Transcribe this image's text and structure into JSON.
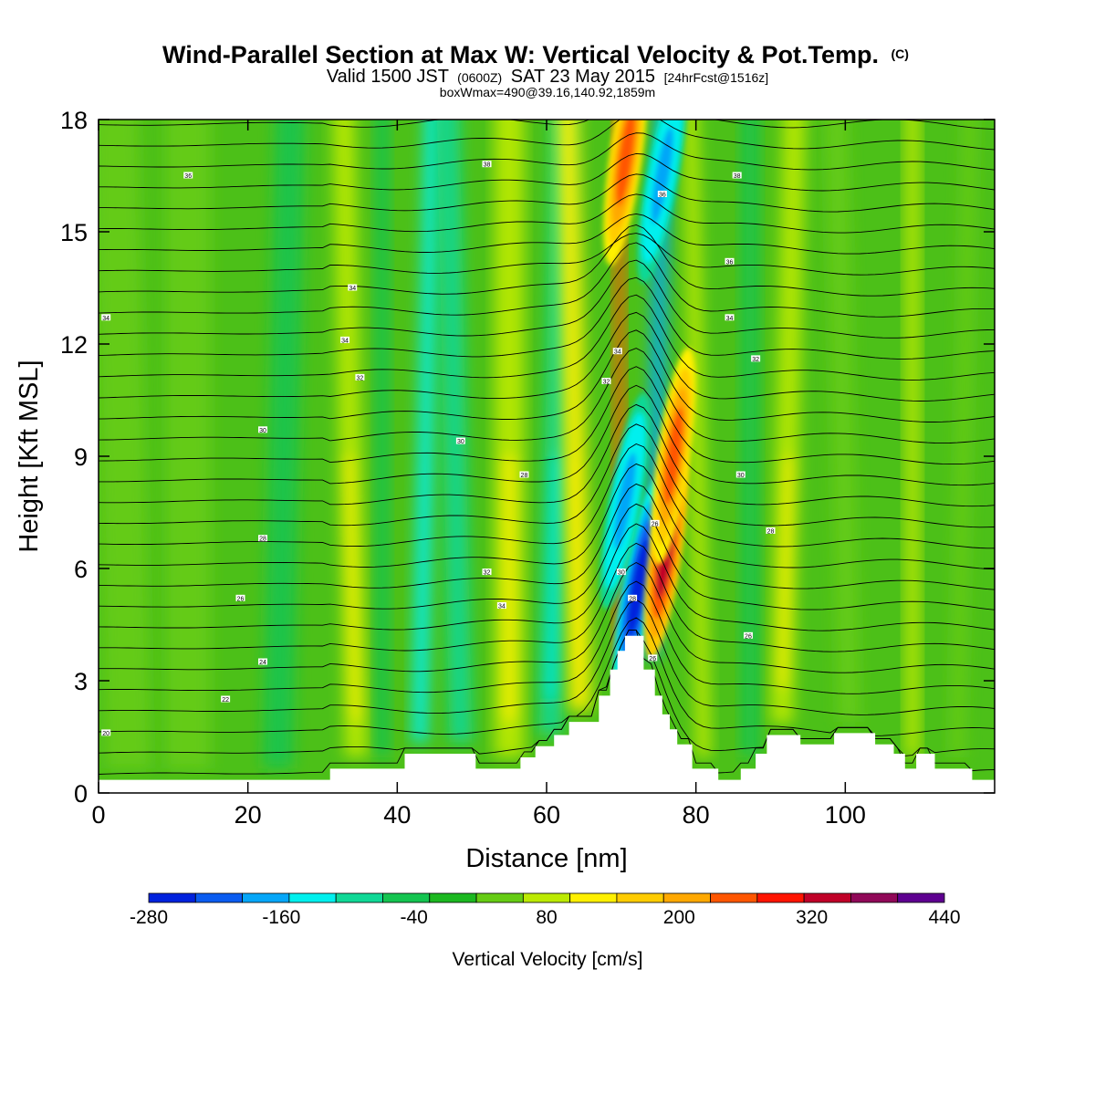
{
  "chart_data": {
    "type": "heatmap",
    "title": "Wind-Parallel Section at Max W: Vertical Velocity & Pot.Temp.",
    "title_mark": "(C)",
    "subtitle": {
      "valid": "Valid 1500 JST",
      "utc": "(0600Z)",
      "date": "SAT 23 May 2015",
      "forecast": "[24hrFcst@1516z]"
    },
    "note": "boxWmax=490@39.16,140.92,1859m",
    "xlabel": "Distance [nm]",
    "ylabel": "Height [Kft MSL]",
    "xlim": [
      0,
      120
    ],
    "ylim": [
      0,
      18
    ],
    "x_ticks": [
      0,
      20,
      40,
      60,
      80,
      100
    ],
    "y_ticks": [
      0,
      3,
      6,
      9,
      12,
      15,
      18
    ],
    "colorbar": {
      "title": "Vertical Velocity [cm/s]",
      "colors": [
        "#0022dd",
        "#0a5cf0",
        "#05a6f8",
        "#00f0ee",
        "#10d896",
        "#14c450",
        "#1cb820",
        "#66cc14",
        "#bcea02",
        "#fff000",
        "#ffcc00",
        "#ffa800",
        "#ff5600",
        "#ff1400",
        "#c00028",
        "#900858",
        "#5e0090"
      ],
      "labels": [
        "-280",
        "-160",
        "-40",
        "80",
        "200",
        "320",
        "440"
      ],
      "label_values": [
        -280,
        -160,
        -40,
        80,
        200,
        320,
        440
      ],
      "range": [
        -280,
        440
      ]
    },
    "terrain_kft": [
      [
        0,
        0.35
      ],
      [
        31,
        0.35
      ],
      [
        31,
        0.65
      ],
      [
        41,
        0.65
      ],
      [
        41,
        1.05
      ],
      [
        50.5,
        1.05
      ],
      [
        50.5,
        0.65
      ],
      [
        56.5,
        0.65
      ],
      [
        56.5,
        0.95
      ],
      [
        58.5,
        0.95
      ],
      [
        58.5,
        1.25
      ],
      [
        61,
        1.25
      ],
      [
        61,
        1.55
      ],
      [
        63,
        1.55
      ],
      [
        63,
        1.9
      ],
      [
        67,
        1.9
      ],
      [
        67,
        2.6
      ],
      [
        68.5,
        2.6
      ],
      [
        68.5,
        3.3
      ],
      [
        69.5,
        3.3
      ],
      [
        69.5,
        3.8
      ],
      [
        70.5,
        3.8
      ],
      [
        70.5,
        4.2
      ],
      [
        73,
        4.2
      ],
      [
        73,
        3.3
      ],
      [
        74.5,
        3.3
      ],
      [
        74.5,
        2.6
      ],
      [
        75.5,
        2.6
      ],
      [
        75.5,
        2.1
      ],
      [
        76.5,
        2.1
      ],
      [
        76.5,
        1.7
      ],
      [
        77.5,
        1.7
      ],
      [
        77.5,
        1.3
      ],
      [
        79.5,
        1.3
      ],
      [
        79.5,
        0.65
      ],
      [
        83,
        0.65
      ],
      [
        83,
        0.35
      ],
      [
        86,
        0.35
      ],
      [
        86,
        0.65
      ],
      [
        88,
        0.65
      ],
      [
        88,
        1.05
      ],
      [
        89.5,
        1.05
      ],
      [
        89.5,
        1.55
      ],
      [
        94,
        1.55
      ],
      [
        94,
        1.3
      ],
      [
        98.5,
        1.3
      ],
      [
        98.5,
        1.6
      ],
      [
        104,
        1.6
      ],
      [
        104,
        1.3
      ],
      [
        106.5,
        1.3
      ],
      [
        106.5,
        1.05
      ],
      [
        108,
        1.05
      ],
      [
        108,
        0.65
      ],
      [
        109.5,
        0.65
      ],
      [
        109.5,
        1.05
      ],
      [
        112,
        1.05
      ],
      [
        112,
        0.65
      ],
      [
        117,
        0.65
      ],
      [
        117,
        0.35
      ],
      [
        120,
        0.35
      ]
    ],
    "w_bands": [
      {
        "x": 1,
        "w": 6,
        "value": 40
      },
      {
        "x": 9,
        "w": 6,
        "value": 50
      },
      {
        "x": 22,
        "w": 4,
        "value": -30
      },
      {
        "x": 33,
        "w": 3,
        "value": 90
      },
      {
        "x": 37,
        "w": 2,
        "value": -60
      },
      {
        "x": 42,
        "w": 2,
        "value": -120
      },
      {
        "x": 47,
        "w": 3,
        "value": -80
      },
      {
        "x": 53,
        "w": 4,
        "value": 100
      },
      {
        "x": 59,
        "w": 3,
        "value": -100
      },
      {
        "x": 63,
        "w": 3,
        "value": 110
      },
      {
        "x": 69,
        "w": 1.5,
        "value": 270
      },
      {
        "x": 73,
        "w": 2,
        "value": -170
      },
      {
        "x": 80,
        "w": 2,
        "value": 80
      },
      {
        "x": 86,
        "w": 2.5,
        "value": -60
      },
      {
        "x": 90,
        "w": 3,
        "value": 100
      },
      {
        "x": 99,
        "w": 3,
        "value": 50
      },
      {
        "x": 108,
        "w": 2,
        "value": 80
      },
      {
        "x": 114,
        "w": 2,
        "value": 40
      }
    ],
    "w_cores": [
      {
        "x": 72.3,
        "y_kft": 5.5,
        "value": -280
      },
      {
        "x": 70.5,
        "y_kft": 7.8,
        "value": -180
      },
      {
        "x": 70.6,
        "y_kft": 17.0,
        "value": 250
      },
      {
        "x": 76.0,
        "y_kft": 6.5,
        "value": 320
      },
      {
        "x": 77.0,
        "y_kft": 9.0,
        "value": 230
      },
      {
        "x": 75.5,
        "y_kft": 16.5,
        "value": -170
      }
    ],
    "theta_labels": [
      {
        "x": 12,
        "y_kft": 16.5,
        "text": "36"
      },
      {
        "x": 1,
        "y_kft": 12.7,
        "text": "34"
      },
      {
        "x": 34,
        "y_kft": 13.5,
        "text": "34"
      },
      {
        "x": 33,
        "y_kft": 12.1,
        "text": "34"
      },
      {
        "x": 35,
        "y_kft": 11.1,
        "text": "32"
      },
      {
        "x": 22,
        "y_kft": 9.7,
        "text": "30"
      },
      {
        "x": 48.5,
        "y_kft": 9.4,
        "text": "30"
      },
      {
        "x": 57,
        "y_kft": 8.5,
        "text": "28"
      },
      {
        "x": 22,
        "y_kft": 6.8,
        "text": "28"
      },
      {
        "x": 19,
        "y_kft": 5.2,
        "text": "26"
      },
      {
        "x": 22,
        "y_kft": 3.5,
        "text": "24"
      },
      {
        "x": 17,
        "y_kft": 2.5,
        "text": "22"
      },
      {
        "x": 1,
        "y_kft": 1.6,
        "text": "20"
      },
      {
        "x": 52,
        "y_kft": 5.9,
        "text": "32"
      },
      {
        "x": 54,
        "y_kft": 5.0,
        "text": "34"
      },
      {
        "x": 52,
        "y_kft": 16.8,
        "text": "38"
      },
      {
        "x": 69.5,
        "y_kft": 11.8,
        "text": "34"
      },
      {
        "x": 68,
        "y_kft": 11.0,
        "text": "32"
      },
      {
        "x": 70,
        "y_kft": 5.9,
        "text": "30"
      },
      {
        "x": 71.5,
        "y_kft": 5.2,
        "text": "28"
      },
      {
        "x": 74.5,
        "y_kft": 7.2,
        "text": "26"
      },
      {
        "x": 74.2,
        "y_kft": 3.6,
        "text": "26"
      },
      {
        "x": 75.5,
        "y_kft": 16.0,
        "text": "36"
      },
      {
        "x": 85.5,
        "y_kft": 16.5,
        "text": "38"
      },
      {
        "x": 84.5,
        "y_kft": 14.2,
        "text": "36"
      },
      {
        "x": 84.5,
        "y_kft": 12.7,
        "text": "34"
      },
      {
        "x": 88,
        "y_kft": 11.6,
        "text": "32"
      },
      {
        "x": 86,
        "y_kft": 8.5,
        "text": "30"
      },
      {
        "x": 90,
        "y_kft": 7.0,
        "text": "28"
      },
      {
        "x": 87,
        "y_kft": 4.2,
        "text": "26"
      }
    ]
  }
}
